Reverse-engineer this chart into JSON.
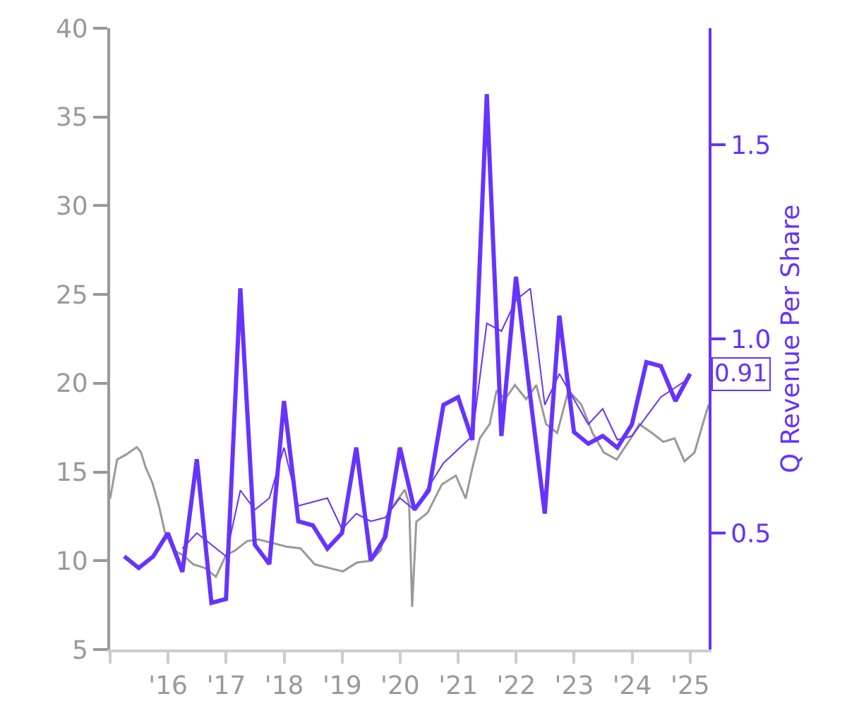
{
  "chart_data": {
    "type": "line",
    "y2label": "Q Revenue Per Share",
    "grid": false,
    "marker": "none",
    "line_style": "solid",
    "xlim": [
      "2015-01-01",
      "2025-04-27"
    ],
    "xticks": [
      {
        "value": "2015-01-01",
        "label": null
      },
      {
        "value": "2016-01-01",
        "label": "'16"
      },
      {
        "value": "2017-01-01",
        "label": "'17"
      },
      {
        "value": "2018-01-01",
        "label": "'18"
      },
      {
        "value": "2019-01-01",
        "label": "'19"
      },
      {
        "value": "2020-01-01",
        "label": "'20"
      },
      {
        "value": "2021-01-01",
        "label": "'21"
      },
      {
        "value": "2022-01-01",
        "label": "'22"
      },
      {
        "value": "2023-01-01",
        "label": "'23"
      },
      {
        "value": "2024-01-01",
        "label": "'24"
      },
      {
        "value": "2025-01-01",
        "label": "'25"
      }
    ],
    "ylim": [
      5,
      40
    ],
    "yticks": [
      5,
      10,
      15,
      20,
      25,
      30,
      35,
      40
    ],
    "y2lim": [
      0.2,
      1.8
    ],
    "y2ticks": [
      0.5,
      {
        "value": 1,
        "label": "1.0"
      },
      1.5
    ],
    "annotations": [
      "0.91"
    ],
    "series": [
      {
        "color": "#999999",
        "x": [
          "2015-01-01",
          "2015-02-14",
          "2015-04-15",
          "2015-06-18",
          "2015-07-15",
          "2015-08-11",
          "2015-09-24",
          "2015-11-07",
          "2015-12-12",
          "2016-02-04",
          "2016-04-06",
          "2016-06-08",
          "2016-08-18",
          "2016-10-28",
          "2016-12-30",
          "2017-03-01",
          "2017-05-11",
          "2017-07-21",
          "2017-10-19",
          "2018-01-15",
          "2018-04-14",
          "2018-07-12",
          "2018-10-08",
          "2019-01-06",
          "2019-04-05",
          "2019-07-02",
          "2019-09-02",
          "2019-10-16",
          "2020-01-31",
          "2020-02-27",
          "2020-03-17",
          "2020-04-12",
          "2020-06-22",
          "2020-09-20",
          "2020-12-17",
          "2021-02-17",
          "2021-04-02",
          "2021-05-17",
          "2021-07-18",
          "2021-08-31",
          "2021-10-23",
          "2021-12-24",
          "2022-03-05",
          "2022-05-08",
          "2022-07-08",
          "2022-09-16",
          "2022-11-26",
          "2023-02-15",
          "2023-04-27",
          "2023-07-07",
          "2023-09-26",
          "2023-12-24",
          "2024-02-15",
          "2024-05-05",
          "2024-07-16",
          "2024-09-24",
          "2024-11-26",
          "2025-01-28",
          "2025-03-21",
          "2025-04-27"
        ],
        "values": [
          13.5,
          15.7,
          16.0,
          16.4,
          16.1,
          15.3,
          14.4,
          13.0,
          11.6,
          10.6,
          10.3,
          9.8,
          9.6,
          9.1,
          10.3,
          10.6,
          11.1,
          11.2,
          11.0,
          10.8,
          10.7,
          9.8,
          9.6,
          9.4,
          9.9,
          10.0,
          10.6,
          12.7,
          14.0,
          13.2,
          7.4,
          12.2,
          12.7,
          14.3,
          14.8,
          13.5,
          15.3,
          16.9,
          17.7,
          19.6,
          19.1,
          19.9,
          19.1,
          19.9,
          17.7,
          17.2,
          19.6,
          18.8,
          17.2,
          16.1,
          15.7,
          16.9,
          17.7,
          17.2,
          16.7,
          16.9,
          15.6,
          16.1,
          17.7,
          18.8
        ]
      },
      {
        "color": "#6633ff",
        "axis": "y2",
        "x": [
          "2015-03-31",
          "2015-06-30",
          "2015-09-30",
          "2015-12-31",
          "2016-03-31",
          "2016-06-30",
          "2016-09-30",
          "2016-12-31",
          "2017-03-31",
          "2017-06-30",
          "2017-09-30",
          "2017-12-31",
          "2018-03-31",
          "2018-06-30",
          "2018-09-30",
          "2018-12-31",
          "2019-03-31",
          "2019-06-30",
          "2019-09-30",
          "2019-12-31",
          "2020-03-31",
          "2020-06-30",
          "2020-09-30",
          "2020-12-31",
          "2021-03-31",
          "2021-06-30",
          "2021-09-30",
          "2021-12-31",
          "2022-03-31",
          "2022-06-30",
          "2022-09-30",
          "2022-12-31",
          "2023-03-31",
          "2023-06-30",
          "2023-09-30",
          "2023-12-31",
          "2024-03-31",
          "2024-06-30",
          "2024-09-30",
          "2024-12-31"
        ],
        "values": [
          0.44,
          0.41,
          0.44,
          0.5,
          0.4,
          0.69,
          0.32,
          0.33,
          1.13,
          0.47,
          0.42,
          0.84,
          0.53,
          0.52,
          0.46,
          0.5,
          0.72,
          0.43,
          0.49,
          0.72,
          0.56,
          0.61,
          0.83,
          0.85,
          0.74,
          1.63,
          0.75,
          1.16,
          0.85,
          0.55,
          1.06,
          0.76,
          0.73,
          0.75,
          0.72,
          0.78,
          0.94,
          0.93,
          0.84,
          0.91
        ]
      },
      {
        "color": "#6633ff",
        "axis": "y2",
        "x": [
          "2016-03-31",
          "2016-06-30",
          "2016-12-31",
          "2017-03-31",
          "2017-06-30",
          "2017-09-30",
          "2017-12-31",
          "2018-03-31",
          "2018-09-30",
          "2018-12-31",
          "2019-03-31",
          "2019-06-30",
          "2019-09-30",
          "2019-12-31",
          "2020-03-31",
          "2020-09-30",
          "2021-03-31",
          "2021-06-30",
          "2021-09-30",
          "2021-12-31",
          "2022-03-31",
          "2022-06-30",
          "2022-09-30",
          "2023-03-31",
          "2023-06-30",
          "2023-09-30",
          "2023-12-31",
          "2024-06-30",
          "2024-12-31"
        ],
        "values": [
          0.46,
          0.5,
          0.44,
          0.61,
          0.56,
          0.59,
          0.72,
          0.57,
          0.59,
          0.51,
          0.55,
          0.53,
          0.54,
          0.59,
          0.56,
          0.68,
          0.75,
          1.04,
          1.02,
          1.1,
          1.13,
          0.83,
          0.91,
          0.78,
          0.82,
          0.74,
          0.75,
          0.85,
          0.9
        ]
      }
    ]
  }
}
